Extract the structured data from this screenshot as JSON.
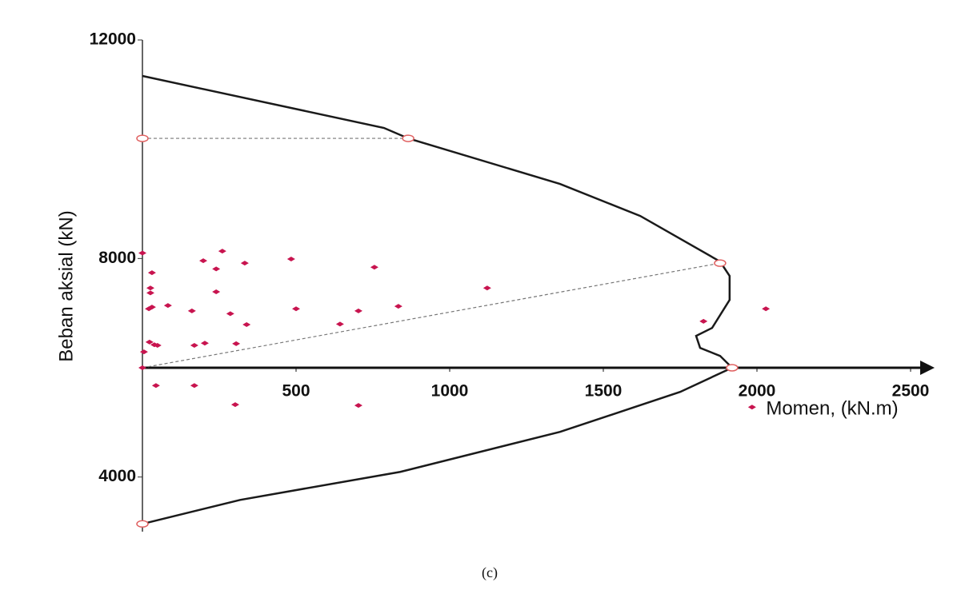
{
  "chart_data": {
    "type": "scatter",
    "xlabel": "Momen, (kN.m)",
    "ylabel": "Beban aksial (kN)",
    "caption": "(c)",
    "xlim": [
      0,
      2500
    ],
    "ylim": [
      3000,
      12000
    ],
    "xticks": [
      500,
      1000,
      1500,
      2000,
      2500
    ],
    "yticks": [
      4000,
      8000,
      12000
    ],
    "xaxis_crossing": 6000,
    "series": [
      {
        "type": "line",
        "color": "#1a1a1a",
        "x": [
          0,
          786,
          865,
          1359,
          1620,
          1880,
          1911,
          1911,
          1854,
          1802,
          1815,
          1880,
          1919,
          null,
          1919,
          1750,
          1359,
          839,
          318,
          0
        ],
        "y": [
          11341,
          10390,
          10199,
          9365,
          8779,
          7944,
          7681,
          7242,
          6729,
          6583,
          6363,
          6217,
          6000,
          null,
          6000,
          5558,
          4826,
          4094,
          3581,
          3142
        ]
      },
      {
        "type": "dashed-line",
        "color": "#777777",
        "x": [
          0,
          865,
          null,
          0,
          1880
        ],
        "y": [
          10199,
          10199,
          null,
          6000,
          7915
        ]
      },
      {
        "type": "open-marker",
        "color": "#e06060",
        "x": [
          0,
          865,
          1880,
          1919,
          0
        ],
        "y": [
          10199,
          10199,
          7915,
          6000,
          3142
        ]
      },
      {
        "type": "scatter",
        "color": "#c8144f",
        "x": [
          0,
          31,
          26,
          26,
          21,
          31,
          83,
          161,
          286,
          500,
          703,
          833,
          1122,
          755,
          484,
          333,
          240,
          198,
          260,
          240,
          23,
          39,
          49,
          5,
          0,
          169,
          203,
          305,
          339,
          643,
          1826,
          2029,
          44,
          169,
          302,
          703,
          1984
        ],
        "y": [
          8100,
          7740,
          7460,
          7370,
          7080,
          7110,
          7140,
          7040,
          6990,
          7080,
          7040,
          7125,
          7460,
          7840,
          7990,
          7915,
          7810,
          7960,
          8135,
          7390,
          6470,
          6420,
          6410,
          6290,
          6000,
          6410,
          6450,
          6440,
          6790,
          6800,
          6850,
          7080,
          5675,
          5675,
          5325,
          5310,
          5280
        ]
      }
    ]
  }
}
